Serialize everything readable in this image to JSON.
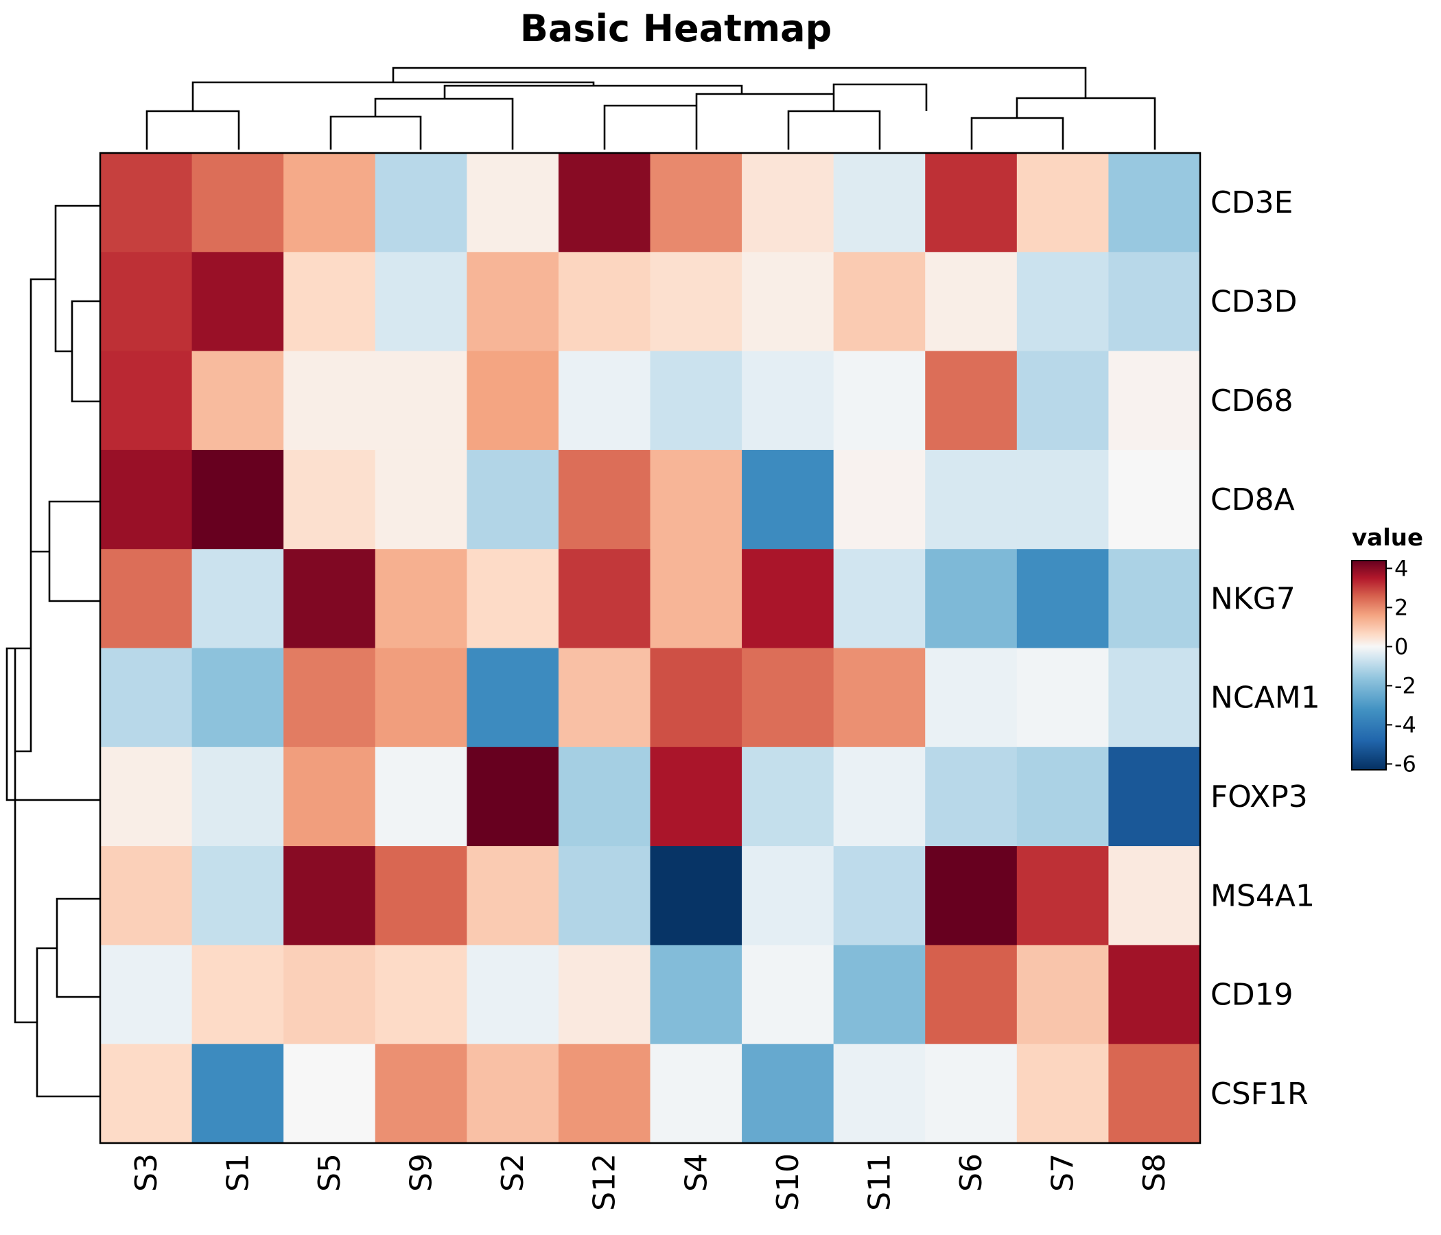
{
  "chart_data": {
    "type": "heatmap",
    "title": "Basic Heatmap",
    "rows": [
      "CD3E",
      "CD3D",
      "CD68",
      "CD8A",
      "NKG7",
      "NCAM1",
      "FOXP3",
      "MS4A1",
      "CD19",
      "CSF1R"
    ],
    "columns": [
      "S3",
      "S1",
      "S5",
      "S9",
      "S2",
      "S12",
      "S4",
      "S10",
      "S11",
      "S6",
      "S7",
      "S8"
    ],
    "values": [
      [
        3.0,
        2.4,
        1.5,
        -1.0,
        0.2,
        4.0,
        2.0,
        0.4,
        -0.4,
        3.2,
        0.7,
        -1.5
      ],
      [
        3.2,
        3.8,
        0.6,
        -0.5,
        1.3,
        0.7,
        0.5,
        0.2,
        0.9,
        0.2,
        -0.7,
        -1.0
      ],
      [
        3.3,
        1.2,
        0.2,
        0.2,
        1.6,
        -0.2,
        -0.7,
        -0.3,
        -0.1,
        2.4,
        -1.0,
        0.1
      ],
      [
        3.8,
        5.0,
        0.5,
        0.2,
        -1.1,
        2.4,
        1.3,
        -3.5,
        0.1,
        -0.5,
        -0.5,
        0.0
      ],
      [
        2.4,
        -0.7,
        4.1,
        1.4,
        0.6,
        3.1,
        1.3,
        3.6,
        -0.6,
        -2.0,
        -3.4,
        -1.2
      ],
      [
        -1.0,
        -1.7,
        2.2,
        1.7,
        -3.5,
        1.1,
        2.8,
        2.4,
        1.9,
        -0.2,
        -0.1,
        -0.7
      ],
      [
        0.2,
        -0.4,
        1.7,
        -0.1,
        5.5,
        -1.3,
        3.6,
        -0.8,
        -0.2,
        -1.0,
        -1.2,
        -5.2
      ],
      [
        0.8,
        -0.8,
        4.0,
        2.5,
        0.9,
        -1.1,
        -6.2,
        -0.3,
        -0.9,
        5.5,
        3.2,
        0.3
      ],
      [
        -0.2,
        0.6,
        0.8,
        0.6,
        -0.2,
        0.3,
        -1.9,
        -0.1,
        -1.9,
        2.6,
        1.0,
        3.7
      ],
      [
        0.6,
        -3.5,
        0.0,
        1.9,
        1.1,
        1.8,
        -0.1,
        -2.5,
        -0.2,
        -0.1,
        0.7,
        2.5
      ]
    ],
    "legend": {
      "title": "value",
      "ticks": [
        "4",
        "2",
        "0",
        "-2",
        "-4",
        "-6"
      ],
      "tick_values": [
        4,
        2,
        0,
        -2,
        -4,
        -6
      ],
      "range": [
        -6.3,
        4.4
      ]
    },
    "colorscale": {
      "stops": [
        -6.3,
        -4.8,
        -3.2,
        -1.6,
        -0.6,
        0,
        0.6,
        1.6,
        2.6,
        3.5,
        4.4
      ],
      "colors": [
        "#053061",
        "#2166ac",
        "#4393c3",
        "#92c5de",
        "#d1e5f0",
        "#f7f7f7",
        "#fddbc7",
        "#f4a582",
        "#d6604d",
        "#b2182b",
        "#67001f"
      ]
    },
    "row_dendrogram": "clustered",
    "column_dendrogram": "clustered",
    "legend_position": "right"
  }
}
